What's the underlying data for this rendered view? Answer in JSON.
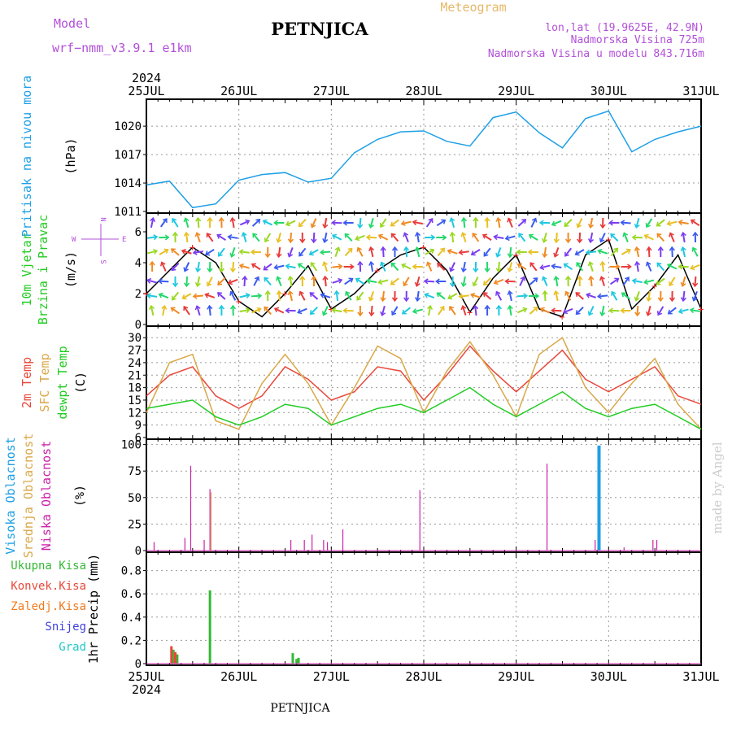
{
  "header": {
    "station": "PETNJICA",
    "model_label": "Model",
    "model_name": "wrf−nmm_v3.9.1  e1km",
    "product": "Meteogram",
    "coords": "lon,lat (19.9625E, 42.9N)",
    "elevation": "Nadmorska Visina 725m",
    "model_elevation": "Nadmorska Visina u modelu 843.716m",
    "credit": "made by Angel",
    "footer_station": "PETNJICA"
  },
  "time_axis": {
    "year": "2024",
    "days": [
      "25JUL",
      "26JUL",
      "27JUL",
      "28JUL",
      "29JUL",
      "30JUL",
      "31JUL"
    ]
  },
  "colors": {
    "pressure": "#1e9fe6",
    "temp2m": "#e8473a",
    "sfc_temp": "#d9a84a",
    "dewpt": "#22cc22",
    "high_cloud": "#1e9fe6",
    "mid_cloud": "#d9a84a",
    "low_cloud": "#cc22aa",
    "total_precip": "#36b836",
    "conv_precip": "#e8473a",
    "frozen_precip": "#f07a1e",
    "snow": "#4040e0",
    "hail": "#22c8c8",
    "wind_line": "#000000",
    "gust": "#ee2222"
  },
  "chart_data": [
    {
      "type": "line",
      "panel": "pressure",
      "ylabel_lines": [
        "Pritisak na nivou mora",
        "(hPa)"
      ],
      "y_ticks": [
        1011,
        1014,
        1017,
        1020
      ],
      "ylim": [
        1011,
        1022.5
      ],
      "grid": true,
      "x": [
        0,
        6,
        12,
        18,
        24,
        30,
        36,
        42,
        48,
        54,
        60,
        66,
        72,
        78,
        84,
        90,
        96,
        102,
        108,
        114,
        120,
        126,
        132,
        138,
        144
      ],
      "series": [
        {
          "values": [
            1013.8,
            1014.2,
            1011.4,
            1011.8,
            1014.3,
            1014.9,
            1015.1,
            1014.1,
            1014.5,
            1017.2,
            1018.6,
            1019.4,
            1019.5,
            1018.4,
            1017.9,
            1020.9,
            1021.5,
            1019.3,
            1017.7,
            1020.8,
            1021.6,
            1017.3,
            1018.6,
            1019.4,
            1020.0
          ]
        }
      ]
    },
    {
      "type": "line",
      "panel": "wind",
      "ylabel_lines": [
        "10m Vjetar",
        "Brzina i Pravac",
        "(m/s)"
      ],
      "compass": {
        "N": "N",
        "S": "S",
        "W": "W",
        "E": "E"
      },
      "y_ticks": [
        0,
        2,
        4,
        6
      ],
      "ylim": [
        0,
        7
      ],
      "grid": false,
      "x": [
        0,
        6,
        12,
        18,
        24,
        30,
        36,
        42,
        48,
        54,
        60,
        66,
        72,
        78,
        84,
        90,
        96,
        102,
        108,
        114,
        120,
        126,
        132,
        138,
        144
      ],
      "series": [
        {
          "values": [
            2.0,
            3.5,
            5.0,
            4.0,
            1.5,
            0.5,
            2.0,
            3.8,
            1.0,
            2.0,
            3.5,
            4.5,
            5.0,
            3.5,
            0.8,
            3.0,
            4.5,
            1.0,
            0.5,
            4.5,
            5.5,
            1.0,
            2.5,
            4.5,
            1.0
          ]
        }
      ]
    },
    {
      "type": "line",
      "panel": "temperature",
      "ylabel_lines": [
        "2m Temp",
        "SFC Temp",
        "dewpt Temp",
        "(C)"
      ],
      "y_ticks": [
        6,
        9,
        12,
        15,
        18,
        21,
        24,
        27,
        30
      ],
      "ylim": [
        6,
        32
      ],
      "grid": true,
      "x": [
        0,
        6,
        12,
        18,
        24,
        30,
        36,
        42,
        48,
        54,
        60,
        66,
        72,
        78,
        84,
        90,
        96,
        102,
        108,
        114,
        120,
        126,
        132,
        138,
        144
      ],
      "series": [
        {
          "values": [
            16,
            21,
            23,
            16,
            13,
            16,
            23,
            20,
            15,
            17,
            23,
            22,
            15,
            21,
            28,
            22,
            17,
            22,
            27,
            20,
            17,
            20,
            23,
            16,
            14
          ]
        },
        {
          "values": [
            12,
            24,
            26,
            10,
            8,
            19,
            26,
            19,
            9,
            18,
            28,
            25,
            12,
            22,
            29,
            21,
            11,
            26,
            30,
            18,
            12,
            19,
            25,
            14,
            8
          ]
        },
        {
          "values": [
            13,
            14,
            15,
            11,
            9,
            11,
            14,
            13,
            9,
            11,
            13,
            14,
            12,
            15,
            18,
            14,
            11,
            14,
            17,
            13,
            11,
            13,
            14,
            11,
            8
          ]
        }
      ]
    },
    {
      "type": "bar",
      "panel": "clouds",
      "ylabel_lines": [
        "Visoka Oblacnost",
        "Srednja Oblacnost",
        "Niska Oblacnost",
        "(%)"
      ],
      "y_ticks": [
        0,
        25,
        50,
        75,
        100
      ],
      "ylim": [
        0,
        102
      ],
      "grid": true,
      "series": [
        {
          "name": "Visoka Oblacnost",
          "x": [
            117.5
          ],
          "values": [
            99
          ]
        },
        {
          "name": "Srednja Oblacnost",
          "x": [
            16.8
          ],
          "values": [
            55
          ]
        },
        {
          "name": "Niska Oblacnost",
          "x": [
            2,
            10,
            11.5,
            15,
            16.5,
            37.5,
            41,
            43,
            46,
            47,
            51,
            71,
            104,
            116.5,
            124,
            131.5,
            132.5
          ],
          "values": [
            8,
            12,
            80,
            10,
            58,
            10,
            10,
            15,
            10,
            8,
            20,
            57,
            82,
            10,
            3,
            10,
            10
          ]
        }
      ]
    },
    {
      "type": "bar",
      "panel": "precip",
      "ylabel_lines": [
        "1hr Precip (mm)"
      ],
      "legend": [
        "Ukupna Kisa",
        "Konvek.Kisa",
        "Zaledj.Kisa",
        "Snijeg",
        "Grad"
      ],
      "y_ticks": [
        0,
        0.2,
        0.4,
        0.6,
        0.8
      ],
      "ylim": [
        0,
        0.93
      ],
      "grid": true,
      "series": [
        {
          "name": "Ukupna Kisa",
          "x": [
            7,
            8,
            16.5,
            38,
            39,
            39.5
          ],
          "values": [
            0.12,
            0.08,
            0.63,
            0.09,
            0.04,
            0.05
          ]
        },
        {
          "name": "Konvek.Kisa",
          "x": [
            6.5,
            7.5
          ],
          "values": [
            0.15,
            0.1
          ]
        }
      ]
    }
  ]
}
